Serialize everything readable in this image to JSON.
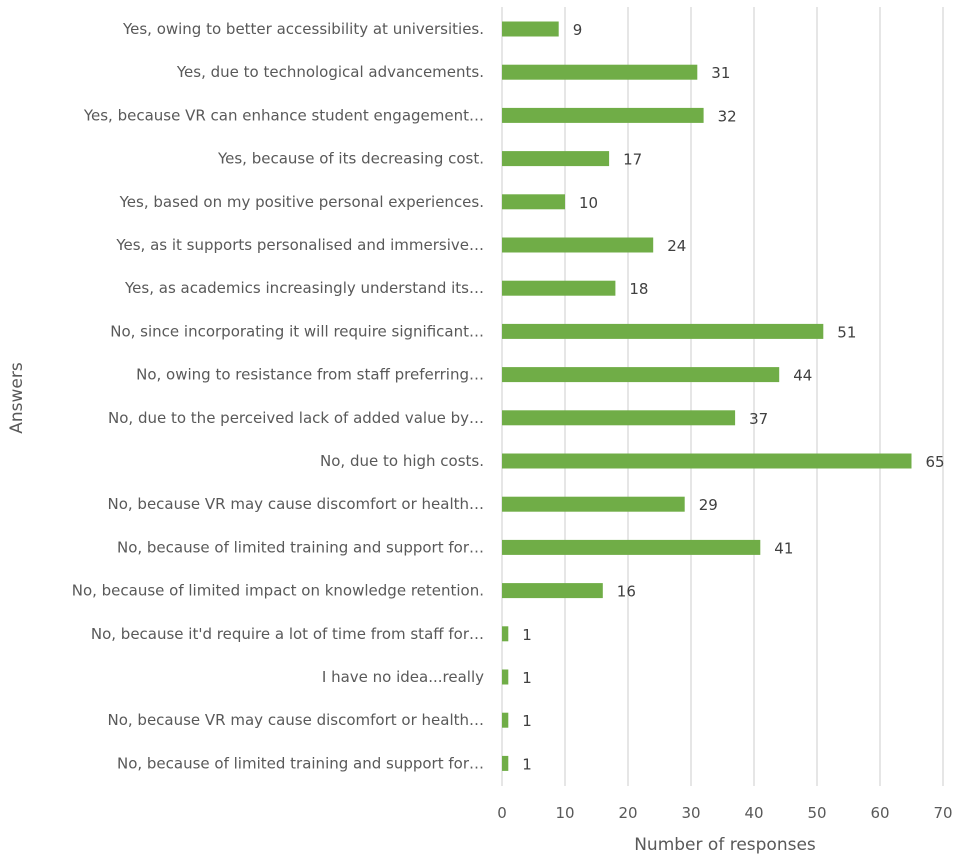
{
  "chart_data": {
    "type": "bar",
    "orientation": "horizontal",
    "categories": [
      "Yes, owing to better accessibility at universities.",
      "Yes, due to technological advancements.",
      "Yes, because VR can enhance student engagement…",
      "Yes, because of its decreasing cost.",
      "Yes, based on my positive personal experiences.",
      "Yes, as it supports personalised and immersive…",
      "Yes, as academics increasingly understand its…",
      "No, since incorporating it will require significant…",
      "No, owing to resistance from staff preferring…",
      "No, due to the perceived lack of added value by…",
      "No, due to high costs.",
      "No, because VR may cause discomfort or health…",
      "No, because of limited training and support for…",
      "No, because of limited impact on knowledge retention.",
      "No, because it'd require a lot of time from staff for…",
      "I have no idea...really",
      "No, because VR may cause discomfort or health…",
      "No, because of limited training and support for…"
    ],
    "values": [
      9,
      31,
      32,
      17,
      10,
      24,
      18,
      51,
      44,
      37,
      65,
      29,
      41,
      16,
      1,
      1,
      1,
      1
    ],
    "data_labels": [
      "9",
      "31",
      "32",
      "17",
      "10",
      "24",
      "18",
      "51",
      "44",
      "37",
      "65",
      "29",
      "41",
      "16",
      "1",
      "1",
      "1",
      "1"
    ],
    "xlim": [
      0,
      70
    ],
    "xticks": [
      0,
      10,
      20,
      30,
      40,
      50,
      60,
      70
    ],
    "xtick_labels": [
      "0",
      "10",
      "20",
      "30",
      "40",
      "50",
      "60",
      "70"
    ],
    "xlabel": "Number of responses",
    "ylabel": "Answers",
    "title": "",
    "grid": "vertical",
    "legend": "none",
    "bar_color": "#70ad47"
  }
}
